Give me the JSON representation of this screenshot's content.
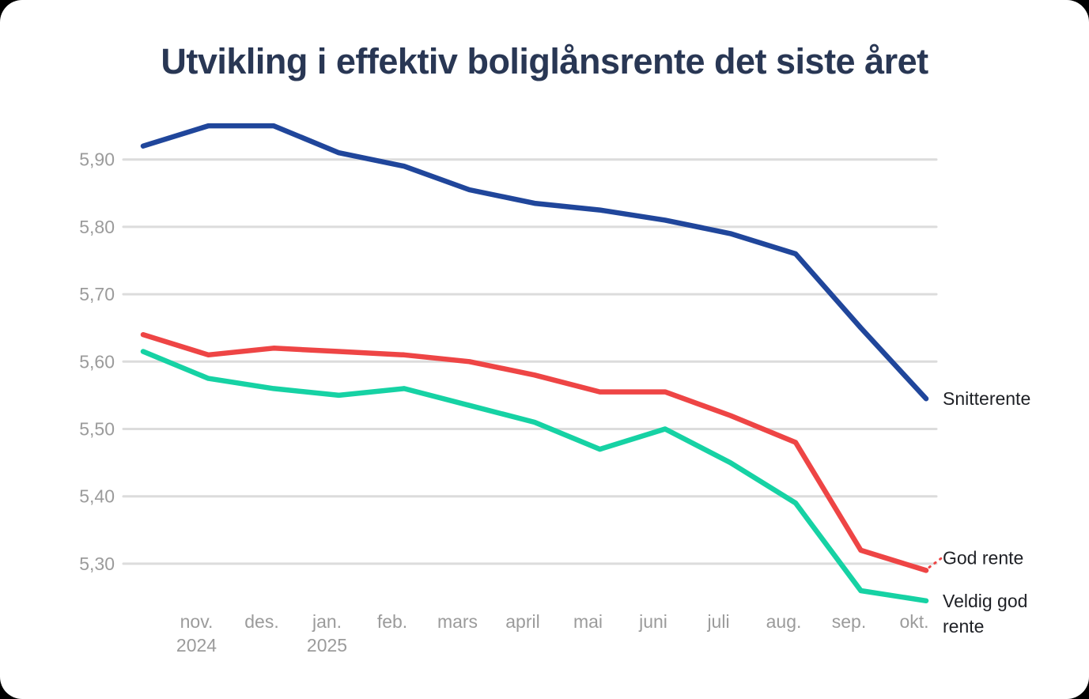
{
  "title": "Utvikling i effektiv boliglånsrente det siste året",
  "chart_data": {
    "type": "line",
    "title": "Utvikling i effektiv boliglånsrente det siste året",
    "xlabel": "",
    "ylabel": "",
    "grid": "horizontal",
    "legend_position": "line-end-right",
    "ylim": [
      5.22,
      5.99
    ],
    "y_ticks": [
      {
        "label": "5,90",
        "value": 5.9
      },
      {
        "label": "5,80",
        "value": 5.8
      },
      {
        "label": "5,70",
        "value": 5.7
      },
      {
        "label": "5,60",
        "value": 5.6
      },
      {
        "label": "5,50",
        "value": 5.5
      },
      {
        "label": "5,40",
        "value": 5.4
      },
      {
        "label": "5,30",
        "value": 5.3
      }
    ],
    "x_ticks": [
      {
        "label": "",
        "year": ""
      },
      {
        "label": "nov.",
        "year": "2024"
      },
      {
        "label": "des.",
        "year": ""
      },
      {
        "label": "jan.",
        "year": "2025"
      },
      {
        "label": "feb.",
        "year": ""
      },
      {
        "label": "mars",
        "year": ""
      },
      {
        "label": "april",
        "year": ""
      },
      {
        "label": "mai",
        "year": ""
      },
      {
        "label": "juni",
        "year": ""
      },
      {
        "label": "juli",
        "year": ""
      },
      {
        "label": "aug.",
        "year": ""
      },
      {
        "label": "sep.",
        "year": ""
      },
      {
        "label": "okt.",
        "year": ""
      }
    ],
    "series": [
      {
        "name": "Snitterente",
        "color": "#20469b",
        "label_lines": [
          "Snitterente"
        ],
        "label_connector": false,
        "values": [
          5.92,
          5.95,
          5.95,
          5.91,
          5.89,
          5.855,
          5.835,
          5.825,
          5.81,
          5.79,
          5.76,
          5.65,
          5.545
        ]
      },
      {
        "name": "God rente",
        "color": "#ee4545",
        "label_lines": [
          "God rente"
        ],
        "label_connector": true,
        "values": [
          5.64,
          5.61,
          5.62,
          5.615,
          5.61,
          5.6,
          5.58,
          5.555,
          5.555,
          5.52,
          5.48,
          5.32,
          5.29
        ]
      },
      {
        "name": "Veldig god rente",
        "color": "#16d2a4",
        "label_lines": [
          "Veldig god",
          "rente"
        ],
        "label_connector": false,
        "values": [
          5.615,
          5.575,
          5.56,
          5.55,
          5.56,
          5.535,
          5.51,
          5.47,
          5.5,
          5.45,
          5.39,
          5.26,
          5.245
        ]
      }
    ],
    "colors": {
      "grid": "#dcdcdc",
      "axis_text": "#9b9b9b",
      "end_label_text": "#1e2025",
      "title_text": "#293754",
      "background": "#ffffff"
    }
  }
}
